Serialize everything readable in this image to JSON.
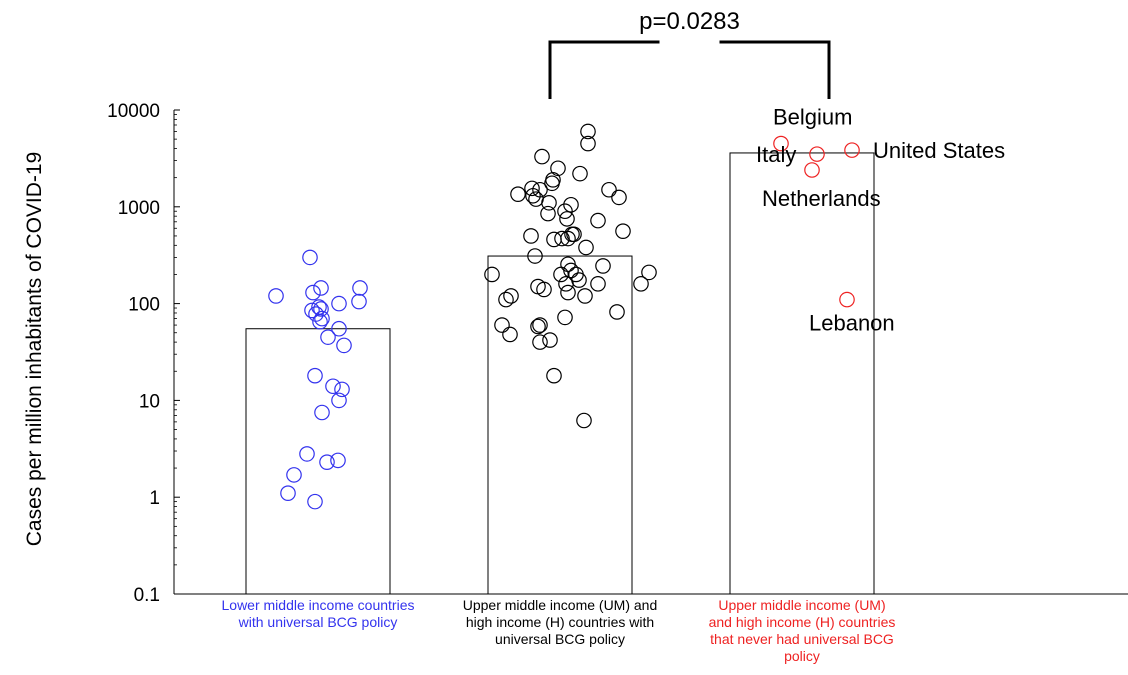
{
  "chart_data": {
    "type": "scatter",
    "ylabel": "Cases per million inhabitants of COVID-19",
    "yscale": "log",
    "ylim": [
      0.1,
      10000
    ],
    "yticks": [
      "10000",
      "1000",
      "100",
      "10",
      "1",
      "0.1"
    ],
    "grid": false,
    "colors": {
      "blue": "#3333ee",
      "black": "#000000",
      "red": "#ee2222"
    },
    "pvalue": {
      "label": "p=0.0283",
      "between": [
        1,
        2
      ]
    },
    "groups": [
      {
        "name": "Lower middle income countries with universal BCG policy",
        "label_lines": [
          "Lower middle income countries",
          "with universal BCG policy"
        ],
        "color": "#3333ee",
        "bar_value": 55,
        "points": [
          {
            "x": -0.08,
            "y": 300
          },
          {
            "x": -0.42,
            "y": 120
          },
          {
            "x": -0.05,
            "y": 130
          },
          {
            "x": 0.03,
            "y": 145
          },
          {
            "x": 0.42,
            "y": 145
          },
          {
            "x": 0.41,
            "y": 105
          },
          {
            "x": -0.06,
            "y": 85
          },
          {
            "x": -0.02,
            "y": 78
          },
          {
            "x": 0.01,
            "y": 92
          },
          {
            "x": 0.03,
            "y": 88
          },
          {
            "x": 0.04,
            "y": 70
          },
          {
            "x": 0.02,
            "y": 65
          },
          {
            "x": 0.21,
            "y": 100
          },
          {
            "x": 0.21,
            "y": 55
          },
          {
            "x": 0.1,
            "y": 45
          },
          {
            "x": 0.26,
            "y": 37
          },
          {
            "x": -0.03,
            "y": 18
          },
          {
            "x": 0.15,
            "y": 14
          },
          {
            "x": 0.24,
            "y": 13
          },
          {
            "x": 0.21,
            "y": 10
          },
          {
            "x": 0.04,
            "y": 7.5
          },
          {
            "x": -0.11,
            "y": 2.8
          },
          {
            "x": 0.09,
            "y": 2.3
          },
          {
            "x": 0.2,
            "y": 2.4
          },
          {
            "x": -0.24,
            "y": 1.7
          },
          {
            "x": -0.3,
            "y": 1.1
          },
          {
            "x": -0.03,
            "y": 0.9
          }
        ]
      },
      {
        "name": "Upper middle income (UM) and high income (H) countries with universal BCG policy",
        "label_lines": [
          "Upper middle income (UM)  and",
          "high income (H) countries with",
          "universal BCG policy"
        ],
        "color": "#000000",
        "bar_value": 310,
        "points": [
          {
            "x": 0.28,
            "y": 6000
          },
          {
            "x": 0.28,
            "y": 4500
          },
          {
            "x": -0.18,
            "y": 3300
          },
          {
            "x": -0.02,
            "y": 2500
          },
          {
            "x": 0.2,
            "y": 2200
          },
          {
            "x": -0.07,
            "y": 1900
          },
          {
            "x": -0.08,
            "y": 1750
          },
          {
            "x": -0.28,
            "y": 1550
          },
          {
            "x": -0.2,
            "y": 1500
          },
          {
            "x": -0.24,
            "y": 1200
          },
          {
            "x": -0.27,
            "y": 1300
          },
          {
            "x": -0.42,
            "y": 1350
          },
          {
            "x": 0.49,
            "y": 1500
          },
          {
            "x": 0.59,
            "y": 1250
          },
          {
            "x": -0.11,
            "y": 1100
          },
          {
            "x": 0.11,
            "y": 1050
          },
          {
            "x": -0.12,
            "y": 850
          },
          {
            "x": 0.05,
            "y": 900
          },
          {
            "x": 0.07,
            "y": 750
          },
          {
            "x": 0.38,
            "y": 720
          },
          {
            "x": 0.14,
            "y": 520
          },
          {
            "x": 0.02,
            "y": 470
          },
          {
            "x": 0.08,
            "y": 470
          },
          {
            "x": 0.12,
            "y": 520
          },
          {
            "x": 0.63,
            "y": 560
          },
          {
            "x": -0.06,
            "y": 460
          },
          {
            "x": -0.29,
            "y": 500
          },
          {
            "x": 0.26,
            "y": 380
          },
          {
            "x": -0.25,
            "y": 310
          },
          {
            "x": 0.43,
            "y": 245
          },
          {
            "x": 0.08,
            "y": 255
          },
          {
            "x": 0.11,
            "y": 220
          },
          {
            "x": 0.16,
            "y": 200
          },
          {
            "x": 0.19,
            "y": 175
          },
          {
            "x": 0.01,
            "y": 200
          },
          {
            "x": -0.68,
            "y": 200
          },
          {
            "x": -0.16,
            "y": 140
          },
          {
            "x": -0.22,
            "y": 150
          },
          {
            "x": -0.49,
            "y": 120
          },
          {
            "x": 0.08,
            "y": 130
          },
          {
            "x": -0.54,
            "y": 110
          },
          {
            "x": 0.06,
            "y": 160
          },
          {
            "x": 0.25,
            "y": 120
          },
          {
            "x": 0.89,
            "y": 210
          },
          {
            "x": 0.38,
            "y": 160
          },
          {
            "x": 0.81,
            "y": 160
          },
          {
            "x": -0.58,
            "y": 60
          },
          {
            "x": -0.2,
            "y": 60
          },
          {
            "x": -0.22,
            "y": 58
          },
          {
            "x": -0.5,
            "y": 48
          },
          {
            "x": -0.2,
            "y": 40
          },
          {
            "x": 0.05,
            "y": 72
          },
          {
            "x": 0.57,
            "y": 82
          },
          {
            "x": -0.1,
            "y": 42
          },
          {
            "x": -0.06,
            "y": 18
          },
          {
            "x": 0.24,
            "y": 6.2
          }
        ]
      },
      {
        "name": "Upper middle income (UM) and high income (H) countries that never had universal BCG policy",
        "label_lines": [
          "Upper middle income (UM)",
          "and high income (H) countries",
          "that never had universal BCG",
          "policy"
        ],
        "color": "#ee2222",
        "bar_value": 3600,
        "points": [
          {
            "x": -0.21,
            "y": 4500,
            "label": "Belgium"
          },
          {
            "x": 0.5,
            "y": 3850,
            "label": "United States"
          },
          {
            "x": 0.15,
            "y": 3500,
            "label": "Italy"
          },
          {
            "x": 0.1,
            "y": 2400,
            "label": "Netherlands"
          },
          {
            "x": 0.45,
            "y": 110,
            "label": "Lebanon"
          }
        ]
      }
    ]
  }
}
